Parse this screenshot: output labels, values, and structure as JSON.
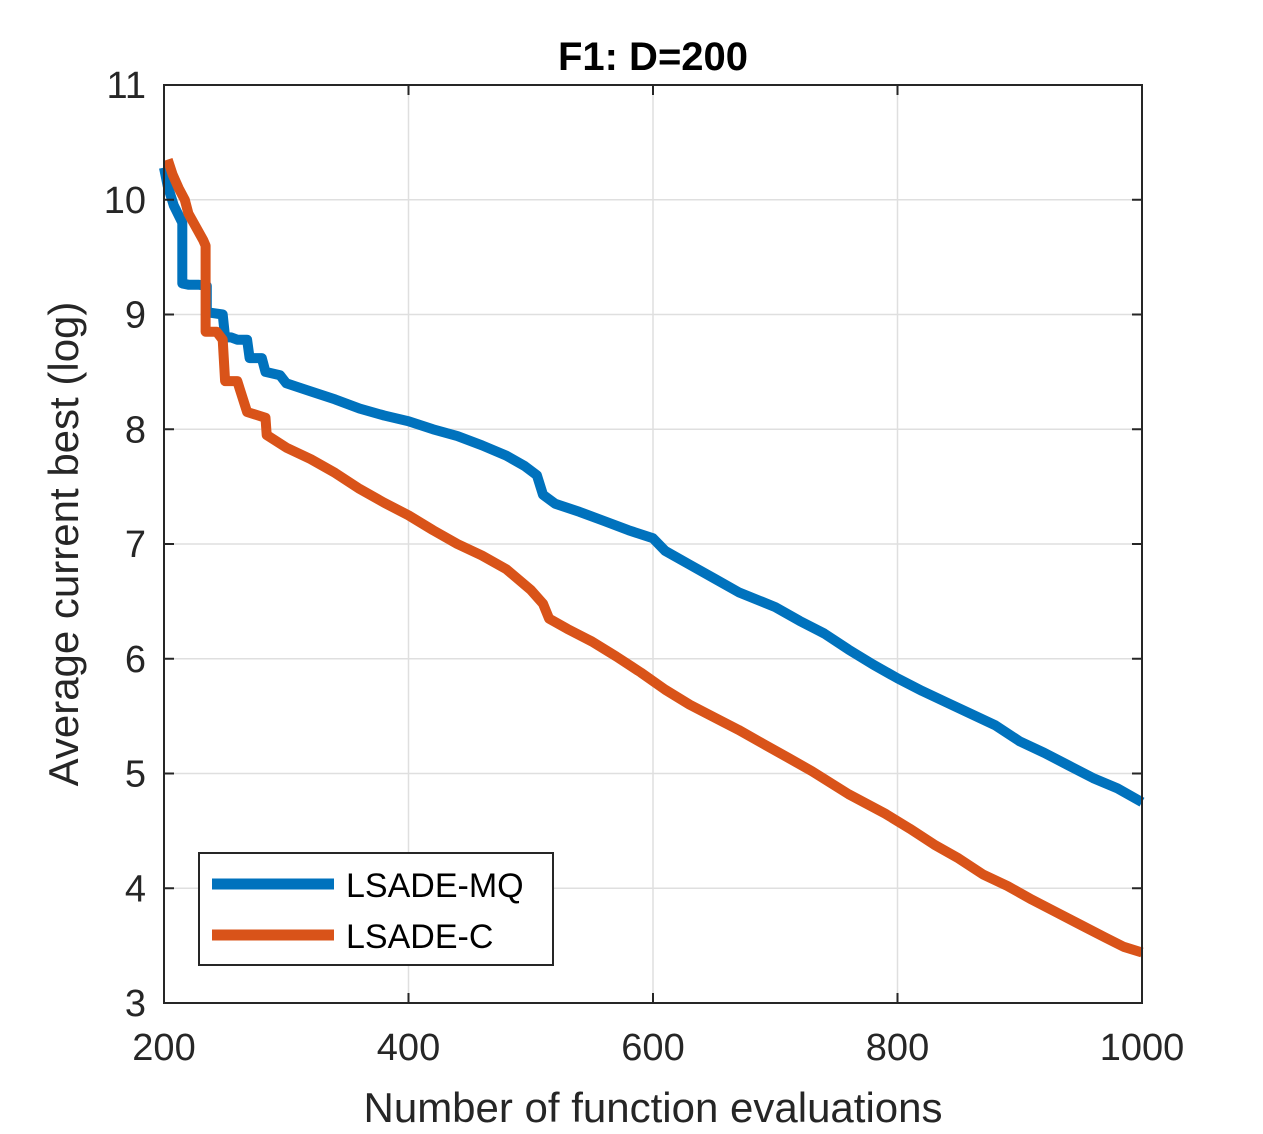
{
  "chart_data": {
    "type": "line",
    "title": "F1: D=200",
    "xlabel": "Number of function evaluations",
    "ylabel": "Average current best (log)",
    "xlim": [
      200,
      1000
    ],
    "ylim": [
      3,
      11
    ],
    "xticks": [
      200,
      400,
      600,
      800,
      1000
    ],
    "yticks": [
      3,
      4,
      5,
      6,
      7,
      8,
      9,
      10,
      11
    ],
    "grid": true,
    "legend_position": "bottom-left",
    "series": [
      {
        "name": "LSADE-MQ",
        "color": "#0072BD",
        "x": [
          200,
          203,
          208,
          215,
          215,
          220,
          228,
          235,
          235,
          248,
          250,
          255,
          260,
          268,
          270,
          280,
          283,
          295,
          300,
          320,
          340,
          360,
          380,
          400,
          420,
          440,
          460,
          480,
          495,
          505,
          510,
          520,
          540,
          560,
          580,
          600,
          610,
          630,
          650,
          670,
          700,
          720,
          740,
          760,
          780,
          800,
          820,
          840,
          860,
          880,
          900,
          920,
          940,
          960,
          980,
          1000
        ],
        "y": [
          10.28,
          10.12,
          9.95,
          9.8,
          9.27,
          9.26,
          9.26,
          9.25,
          9.02,
          9.0,
          8.8,
          8.8,
          8.78,
          8.78,
          8.62,
          8.62,
          8.5,
          8.47,
          8.4,
          8.33,
          8.26,
          8.18,
          8.12,
          8.07,
          8.0,
          7.94,
          7.86,
          7.77,
          7.68,
          7.6,
          7.43,
          7.35,
          7.28,
          7.2,
          7.12,
          7.05,
          6.94,
          6.82,
          6.7,
          6.58,
          6.45,
          6.33,
          6.22,
          6.08,
          5.95,
          5.83,
          5.72,
          5.62,
          5.52,
          5.42,
          5.28,
          5.18,
          5.07,
          4.96,
          4.87,
          4.75
        ]
      },
      {
        "name": "LSADE-C",
        "color": "#D95319",
        "x": [
          203,
          207,
          212,
          217,
          220,
          232,
          234,
          234,
          243,
          248,
          250,
          260,
          262,
          268,
          283,
          284,
          300,
          320,
          340,
          360,
          380,
          400,
          420,
          440,
          460,
          480,
          500,
          510,
          515,
          530,
          550,
          570,
          590,
          610,
          630,
          650,
          670,
          690,
          710,
          730,
          760,
          790,
          810,
          830,
          850,
          870,
          890,
          910,
          930,
          950,
          970,
          985,
          1000
        ],
        "y": [
          10.35,
          10.22,
          10.1,
          10.0,
          9.88,
          9.65,
          9.6,
          8.85,
          8.85,
          8.78,
          8.42,
          8.42,
          8.35,
          8.15,
          8.1,
          7.95,
          7.84,
          7.74,
          7.62,
          7.48,
          7.36,
          7.25,
          7.12,
          7.0,
          6.9,
          6.78,
          6.6,
          6.48,
          6.35,
          6.26,
          6.15,
          6.02,
          5.88,
          5.73,
          5.6,
          5.49,
          5.38,
          5.26,
          5.14,
          5.02,
          4.82,
          4.65,
          4.52,
          4.38,
          4.26,
          4.12,
          4.02,
          3.9,
          3.79,
          3.68,
          3.57,
          3.49,
          3.44
        ]
      }
    ]
  }
}
